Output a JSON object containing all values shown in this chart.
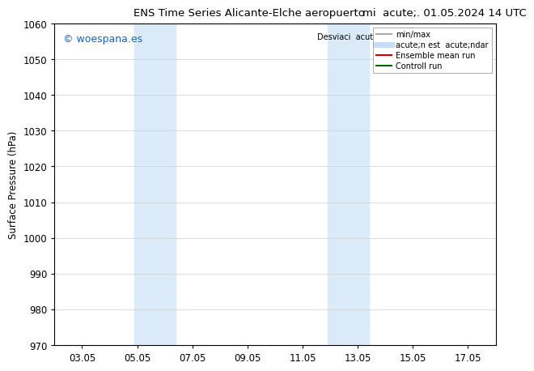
{
  "title_left": "ENS Time Series Alicante-Elche aeropuerto",
  "title_right": "mi  acute;. 01.05.2024 14 UTC",
  "ylabel": "Surface Pressure (hPa)",
  "ylim": [
    970,
    1060
  ],
  "yticks": [
    970,
    980,
    990,
    1000,
    1010,
    1020,
    1030,
    1040,
    1050,
    1060
  ],
  "xtick_labels": [
    "03.05",
    "05.05",
    "07.05",
    "09.05",
    "11.05",
    "13.05",
    "15.05",
    "17.05"
  ],
  "xtick_positions": [
    2,
    4,
    6,
    8,
    10,
    12,
    14,
    16
  ],
  "xlim": [
    1,
    17
  ],
  "shaded_bands": [
    {
      "xmin": 3.9,
      "xmax": 5.4,
      "color": "#daeaf8"
    },
    {
      "xmin": 10.9,
      "xmax": 12.4,
      "color": "#daeaf8"
    }
  ],
  "watermark_text": "© woespana.es",
  "watermark_color": "#1565c0",
  "legend_entries": [
    {
      "label": "min/max",
      "color": "#aaaaaa",
      "lw": 1.5
    },
    {
      "label": "acute;n est  acute;ndar",
      "color": "#c8ddf5",
      "lw": 5
    },
    {
      "label": "Ensemble mean run",
      "color": "#cc0000",
      "lw": 1.5
    },
    {
      "label": "Controll run",
      "color": "#006600",
      "lw": 1.5
    }
  ],
  "desviaci_label": "Desviaci  acute;n est  acute;ndar",
  "bg_color": "#ffffff",
  "plot_bg_color": "#ffffff",
  "border_color": "#000000",
  "grid_color": "#cccccc",
  "font_size": 8.5,
  "title_fontsize": 9.5,
  "watermark_fontsize": 9
}
